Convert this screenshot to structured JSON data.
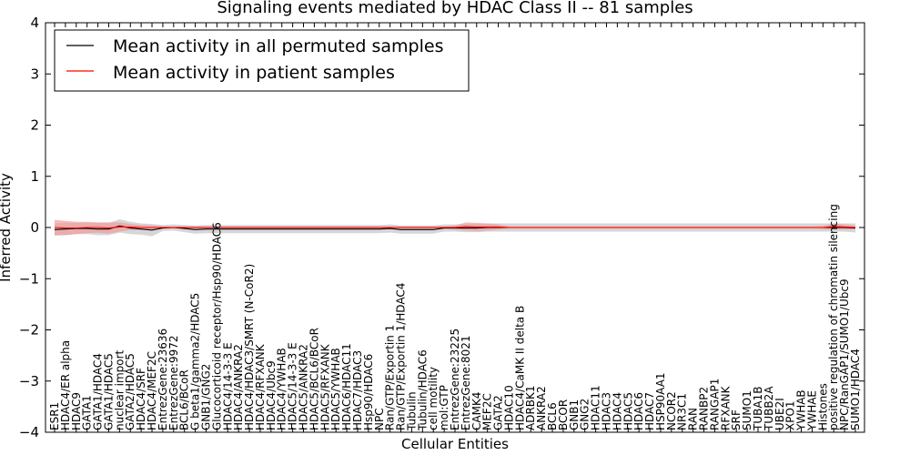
{
  "chart_data": {
    "type": "line",
    "title": "Signaling events mediated by HDAC Class II -- 81 samples",
    "xlabel": "Cellular Entities",
    "ylabel": "Inferred Activity",
    "ylim": [
      -4,
      4
    ],
    "yticks": [
      -4,
      -3,
      -2,
      -1,
      0,
      1,
      2,
      3,
      4
    ],
    "ytick_labels": [
      "−4",
      "−3",
      "−2",
      "−1",
      "0",
      "1",
      "2",
      "3",
      "4"
    ],
    "legend_position": "top-left",
    "categories": [
      "ESR1",
      "HDAC4/ER alpha",
      "HDAC9",
      "GATA1",
      "GATA1/HDAC4",
      "GATA1/HDAC5",
      "nuclear import",
      "GATA2/HDAC5",
      "HDAC4/SRF",
      "HDAC4/MEF2C",
      "EntrezGene:23636",
      "EntrezGene:9972",
      "BCL6/BCoR",
      "G beta1/gamma2/HDAC5",
      "GNB1/GNG2",
      "Glucocorticoid receptor/Hsp90/HDAC6",
      "HDAC4/14-3-3 E",
      "HDAC4/ANKRA2",
      "HDAC4/HDAC3/SMRT (N-CoR2)",
      "HDAC4/RFXANK",
      "HDAC4/Ubc9",
      "HDAC4/YWHAB",
      "HDAC5/14-3-3 E",
      "HDAC5/ANKRA2",
      "HDAC5/BCL6/BCoR",
      "HDAC5/RFXANK",
      "HDAC5/YWHAB",
      "HDAC6/HDAC11",
      "HDAC7/HDAC3",
      "Hsp90/HDAC6",
      "NPC",
      "Ran/GTP/Exportin 1",
      "Ran/GTP/Exportin 1/HDAC4",
      "Tubulin",
      "Tubulin/HDAC6",
      "cell motility",
      "mol:GTP",
      "EntrezGene:23225",
      "EntrezGene:8021",
      "CAMK4",
      "MEF2C",
      "GATA2",
      "HDAC10",
      "HDAC4/CaMK II delta B",
      "ADRBK1",
      "ANKRA2",
      "BCL6",
      "BCOR",
      "GNB1",
      "GNG2",
      "HDAC11",
      "HDAC3",
      "HDAC4",
      "HDAC5",
      "HDAC6",
      "HDAC7",
      "HSP90AA1",
      "NCOR2",
      "NR3C1",
      "RAN",
      "RANBP2",
      "RANGAP1",
      "RFXANK",
      "SRF",
      "SUMO1",
      "TUBA1B",
      "TUBB2A",
      "UBE2I",
      "XPO1",
      "YWHAB",
      "YWHAE",
      "Histones",
      "positive regulation of chromatin silencing",
      "NPC/RanGAP1/SUMO1/Ubc9",
      "SUMO1/HDAC4"
    ],
    "series": [
      {
        "name": "Mean activity in all permuted samples",
        "color": "#000000",
        "band_color": "#c8c8c8",
        "values": [
          -0.04,
          -0.03,
          -0.02,
          -0.02,
          -0.03,
          -0.03,
          0.03,
          -0.01,
          -0.03,
          -0.05,
          -0.01,
          0.0,
          -0.02,
          -0.04,
          -0.03,
          -0.03,
          -0.03,
          -0.03,
          -0.03,
          -0.03,
          -0.03,
          -0.03,
          -0.03,
          -0.03,
          -0.03,
          -0.03,
          -0.03,
          -0.03,
          -0.03,
          -0.03,
          -0.03,
          -0.02,
          -0.04,
          -0.04,
          -0.04,
          -0.04,
          -0.01,
          -0.01,
          -0.01,
          -0.01,
          0.0,
          0.0,
          0.0,
          0.0,
          0.0,
          0.0,
          0.0,
          0.0,
          0.0,
          0.0,
          0.0,
          0.0,
          0.0,
          0.0,
          0.0,
          0.0,
          0.0,
          0.0,
          0.0,
          0.0,
          0.0,
          0.0,
          0.0,
          0.0,
          0.0,
          0.0,
          0.0,
          0.0,
          0.0,
          0.0,
          0.0,
          0.0,
          0.0,
          0.0,
          -0.01
        ],
        "band_half": [
          0.12,
          0.12,
          0.11,
          0.11,
          0.12,
          0.12,
          0.13,
          0.12,
          0.11,
          0.12,
          0.06,
          0.06,
          0.07,
          0.08,
          0.08,
          0.08,
          0.08,
          0.08,
          0.08,
          0.08,
          0.08,
          0.08,
          0.08,
          0.08,
          0.08,
          0.08,
          0.08,
          0.08,
          0.08,
          0.08,
          0.08,
          0.08,
          0.08,
          0.08,
          0.08,
          0.08,
          0.07,
          0.07,
          0.08,
          0.08,
          0.08,
          0.08,
          0.08,
          0.08,
          0.08,
          0.08,
          0.08,
          0.08,
          0.08,
          0.08,
          0.08,
          0.08,
          0.08,
          0.08,
          0.08,
          0.08,
          0.08,
          0.08,
          0.08,
          0.08,
          0.08,
          0.08,
          0.08,
          0.08,
          0.08,
          0.08,
          0.08,
          0.08,
          0.08,
          0.08,
          0.08,
          0.08,
          0.08,
          0.08,
          0.09
        ]
      },
      {
        "name": "Mean activity in patient samples",
        "color": "#ff0000",
        "band_color": "#f19696",
        "values": [
          0.0,
          -0.01,
          -0.01,
          0.0,
          0.0,
          -0.01,
          0.01,
          0.01,
          0.0,
          0.0,
          0.0,
          0.0,
          0.0,
          0.0,
          0.0,
          0.0,
          0.0,
          0.0,
          0.0,
          0.0,
          0.0,
          0.0,
          0.0,
          0.0,
          0.0,
          0.0,
          0.0,
          0.0,
          0.0,
          0.0,
          0.0,
          0.0,
          0.0,
          0.0,
          0.0,
          0.0,
          0.0,
          0.0,
          0.02,
          0.01,
          0.01,
          0.01,
          0.0,
          0.0,
          0.0,
          0.0,
          0.0,
          0.0,
          0.0,
          0.0,
          0.0,
          0.0,
          0.0,
          0.0,
          0.0,
          0.0,
          0.0,
          0.0,
          0.0,
          0.0,
          0.0,
          0.0,
          0.0,
          0.0,
          0.0,
          0.0,
          0.0,
          0.0,
          0.0,
          0.0,
          0.0,
          0.0,
          0.02,
          0.01,
          0.0
        ],
        "band_half": [
          0.15,
          0.14,
          0.12,
          0.11,
          0.1,
          0.11,
          0.09,
          0.06,
          0.05,
          0.04,
          0.02,
          0.02,
          0.02,
          0.02,
          0.02,
          0.02,
          0.02,
          0.02,
          0.02,
          0.02,
          0.02,
          0.02,
          0.02,
          0.02,
          0.02,
          0.02,
          0.02,
          0.02,
          0.02,
          0.02,
          0.02,
          0.02,
          0.02,
          0.02,
          0.02,
          0.02,
          0.02,
          0.04,
          0.08,
          0.08,
          0.07,
          0.05,
          0.02,
          0.02,
          0.02,
          0.02,
          0.02,
          0.02,
          0.02,
          0.02,
          0.02,
          0.02,
          0.02,
          0.02,
          0.02,
          0.02,
          0.02,
          0.02,
          0.02,
          0.02,
          0.02,
          0.02,
          0.02,
          0.02,
          0.02,
          0.02,
          0.02,
          0.02,
          0.02,
          0.02,
          0.02,
          0.03,
          0.06,
          0.05,
          0.04
        ]
      }
    ]
  }
}
